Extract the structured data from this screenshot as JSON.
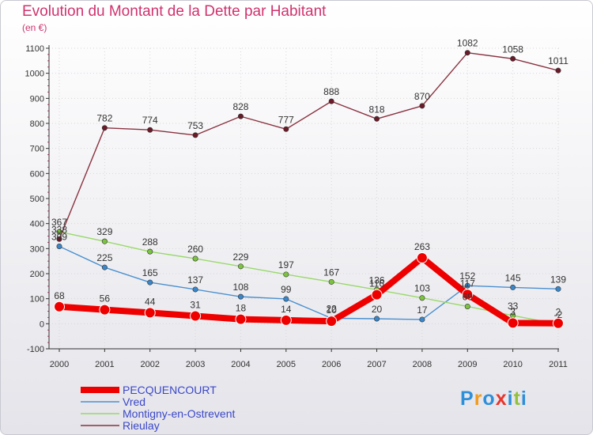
{
  "title": "Evolution du Montant de la Dette par Habitant",
  "subtitle": "(en €)",
  "logo": {
    "text": "Proxiti",
    "colors": [
      "#2e8fd9",
      "#f19b1c",
      "#2e8fd9",
      "#e8352c",
      "#2e8fd9",
      "#92c13c",
      "#2e8fd9"
    ]
  },
  "colors": {
    "title": "#d0336e",
    "grid_dots": "#d8d8d8"
  },
  "chart_data": {
    "type": "line",
    "title": "Evolution du Montant de la Dette par Habitant",
    "xlabel": "",
    "ylabel": "(en €)",
    "ylim": [
      -100,
      1100
    ],
    "yticks": [
      "-100",
      "0",
      "100",
      "200",
      "300",
      "400",
      "500",
      "600",
      "700",
      "800",
      "900",
      "1000",
      "1100"
    ],
    "categories": [
      "2000",
      "2001",
      "2002",
      "2003",
      "2004",
      "2005",
      "2006",
      "2007",
      "2008",
      "2009",
      "2010",
      "2011"
    ],
    "legend": "bottom-left",
    "series": [
      {
        "name": "PECQUENCOURT",
        "color": "#ee0000",
        "thick": true,
        "values": [
          68,
          56,
          44,
          31,
          18,
          14,
          10,
          116,
          263,
          117,
          3,
          2
        ],
        "labels": [
          "68",
          "56",
          "44",
          "31",
          "18",
          "14",
          "10",
          "116",
          "263",
          "117",
          "3",
          "2"
        ]
      },
      {
        "name": "Vred",
        "color": "#4b90cf",
        "dot": "#3a86c8",
        "values": [
          309,
          225,
          165,
          137,
          108,
          99,
          22,
          20,
          17,
          152,
          145,
          139
        ],
        "labels": [
          "309",
          "225",
          "165",
          "137",
          "108",
          "99",
          "22",
          "20",
          "17",
          "152",
          "145",
          "139"
        ]
      },
      {
        "name": "Montigny-en-Ostrevent",
        "color": "#9ad86b",
        "dot": "#7cc43f",
        "values": [
          367,
          329,
          288,
          260,
          229,
          197,
          167,
          136,
          103,
          69,
          33,
          -2
        ],
        "labels": [
          "367",
          "329",
          "288",
          "260",
          "229",
          "197",
          "167",
          "136",
          "103",
          "69",
          "33",
          "-2"
        ]
      },
      {
        "name": "Rieulay",
        "color": "#8a3340",
        "dot": "#6a1a28",
        "values": [
          338,
          782,
          774,
          753,
          828,
          777,
          888,
          818,
          870,
          1082,
          1058,
          1011
        ],
        "labels": [
          "338",
          "782",
          "774",
          "753",
          "828",
          "777",
          "888",
          "818",
          "870",
          "1082",
          "1058",
          "1011"
        ]
      }
    ]
  }
}
